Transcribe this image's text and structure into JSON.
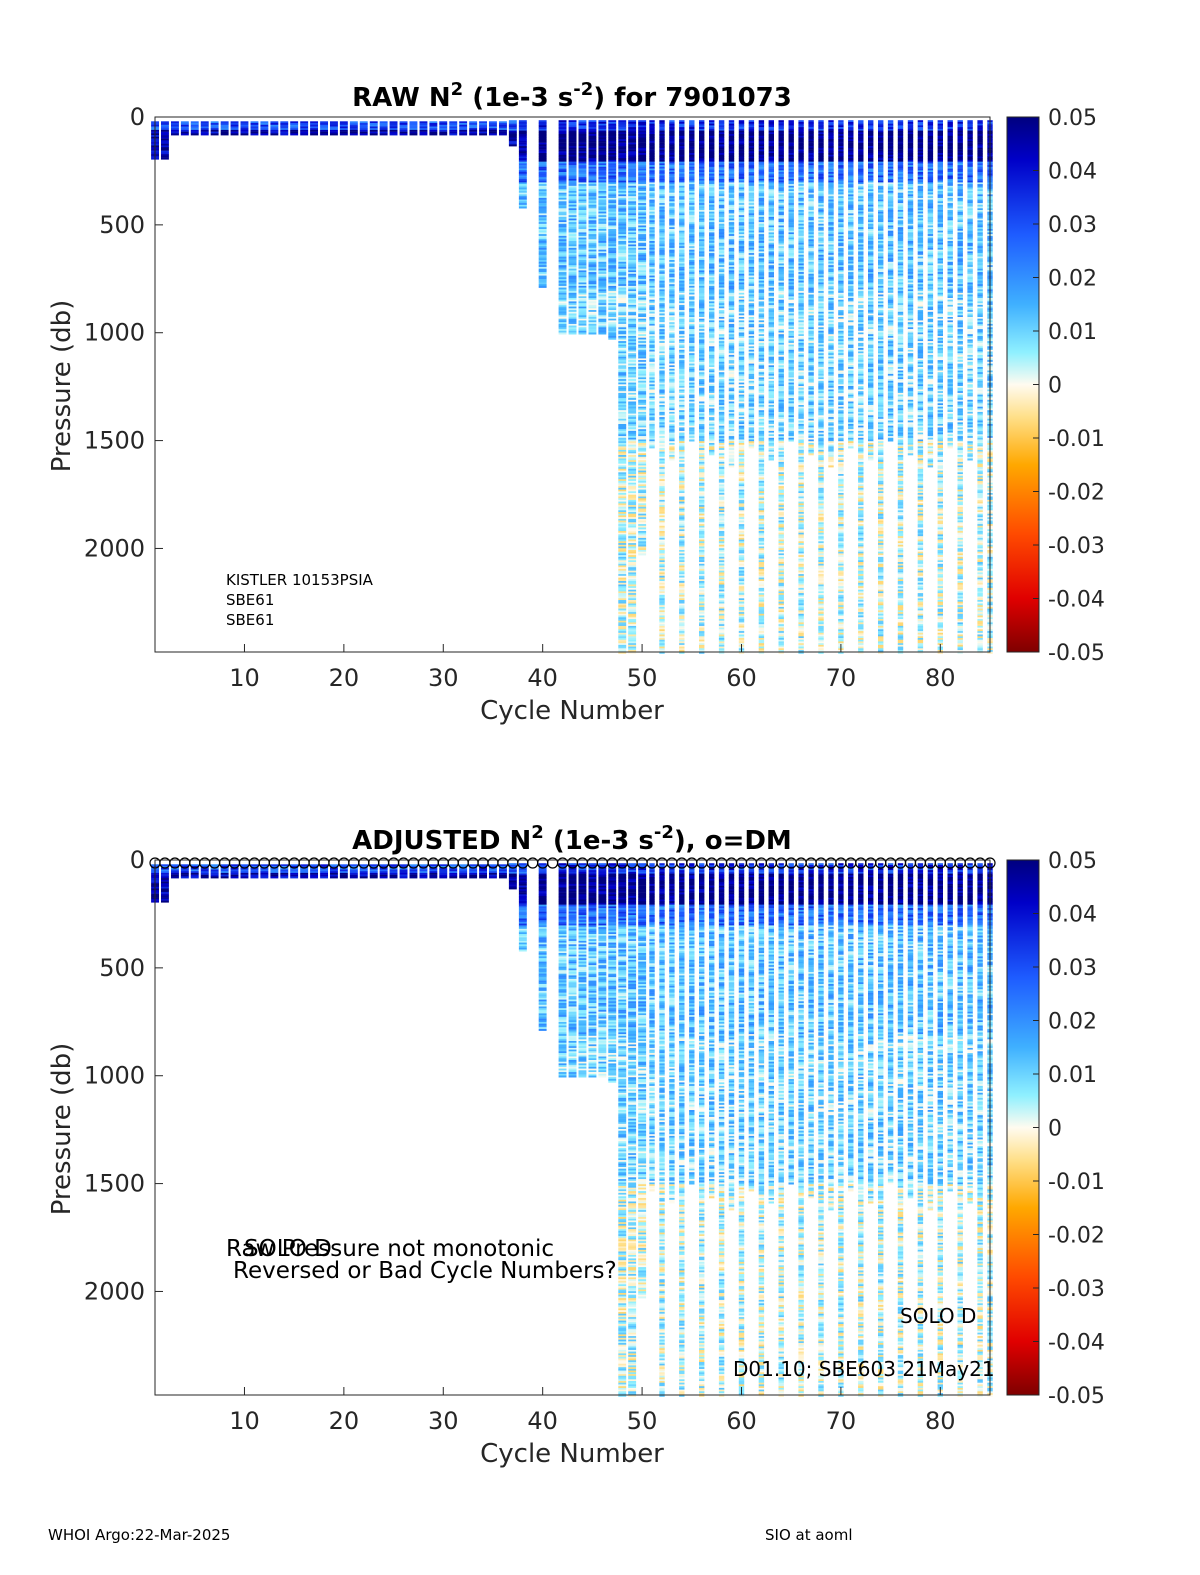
{
  "figure": {
    "footer_left": "WHOI Argo:22-Mar-2025",
    "footer_right": "SIO at aoml"
  },
  "colorbar": {
    "range": [
      -0.05,
      0.05
    ],
    "tick_labels": [
      "0.05",
      "0.04",
      "0.03",
      "0.02",
      "0.01",
      "0",
      "-0.01",
      "-0.02",
      "-0.03",
      "-0.04",
      "-0.05"
    ],
    "colormap": "blue-cyan-white-yellow-red (jet-like, diverging)"
  },
  "chart_data": [
    {
      "type": "heatmap",
      "title_parts": [
        "RAW N",
        "2",
        " (1e-3 s",
        "-2",
        ") for 7901073"
      ],
      "xlabel": "Cycle Number",
      "ylabel": "Pressure (db)",
      "xlim": [
        1,
        85
      ],
      "ylim": [
        2480,
        0
      ],
      "y_reversed": true,
      "xticks": [
        10,
        20,
        30,
        40,
        50,
        60,
        70,
        80
      ],
      "yticks": [
        0,
        500,
        1000,
        1500,
        2000
      ],
      "annotations": [
        "KISTLER 10153PSIA",
        "SBE61",
        "SBE61"
      ],
      "dm_markers": false,
      "profiles": {
        "cycles_1_2_max_pressure": 190,
        "cycles_3_36_max_pressure": 80,
        "cycle_37_max_pressure": 130,
        "cycle_38_max_pressure": 420,
        "cycle_40_max_pressure": 790,
        "cycles_42_46_max_pressure": 1000,
        "cycle_47_max_pressure": 1030,
        "cycle_48_49_max_pressure": 2480,
        "cycle_50_max_pressure": 2030,
        "cycles_51_85_max_pressure": [
          2480,
          1500
        ]
      },
      "value_range": [
        -0.05,
        0.05
      ],
      "typical_values": {
        "surface_0_200db": 0.045,
        "mid_200_800db": 0.012,
        "deep_below_1500db": 0.003
      }
    },
    {
      "type": "heatmap",
      "title_parts": [
        "ADJUSTED N",
        "2",
        " (1e-3 s",
        "-2",
        "), o=DM"
      ],
      "xlabel": "Cycle Number",
      "ylabel": "Pressure (db)",
      "xlim": [
        1,
        85
      ],
      "ylim": [
        2480,
        0
      ],
      "y_reversed": true,
      "xticks": [
        10,
        20,
        30,
        40,
        50,
        60,
        70,
        80
      ],
      "yticks": [
        0,
        500,
        1000,
        1500,
        2000
      ],
      "annotations": [
        "SOLO D",
        "Raw Pressure not monotonic",
        "Reversed or Bad Cycle Numbers?",
        "SOLO D",
        "D01.10; SBE603 21May21"
      ],
      "dm_markers": true,
      "profiles": {
        "cycles_1_2_max_pressure": 190,
        "cycles_3_36_max_pressure": 80,
        "cycle_37_max_pressure": 130,
        "cycle_38_max_pressure": 420,
        "cycle_40_max_pressure": 790,
        "cycles_42_46_max_pressure": 1000,
        "cycle_47_max_pressure": 1030,
        "cycle_48_49_max_pressure": 2480,
        "cycle_50_max_pressure": 2030,
        "cycles_51_85_max_pressure": [
          2480,
          1500
        ]
      },
      "value_range": [
        -0.05,
        0.05
      ],
      "typical_values": {
        "surface_0_200db": 0.045,
        "mid_200_800db": 0.012,
        "deep_below_1500db": 0.003
      }
    }
  ]
}
